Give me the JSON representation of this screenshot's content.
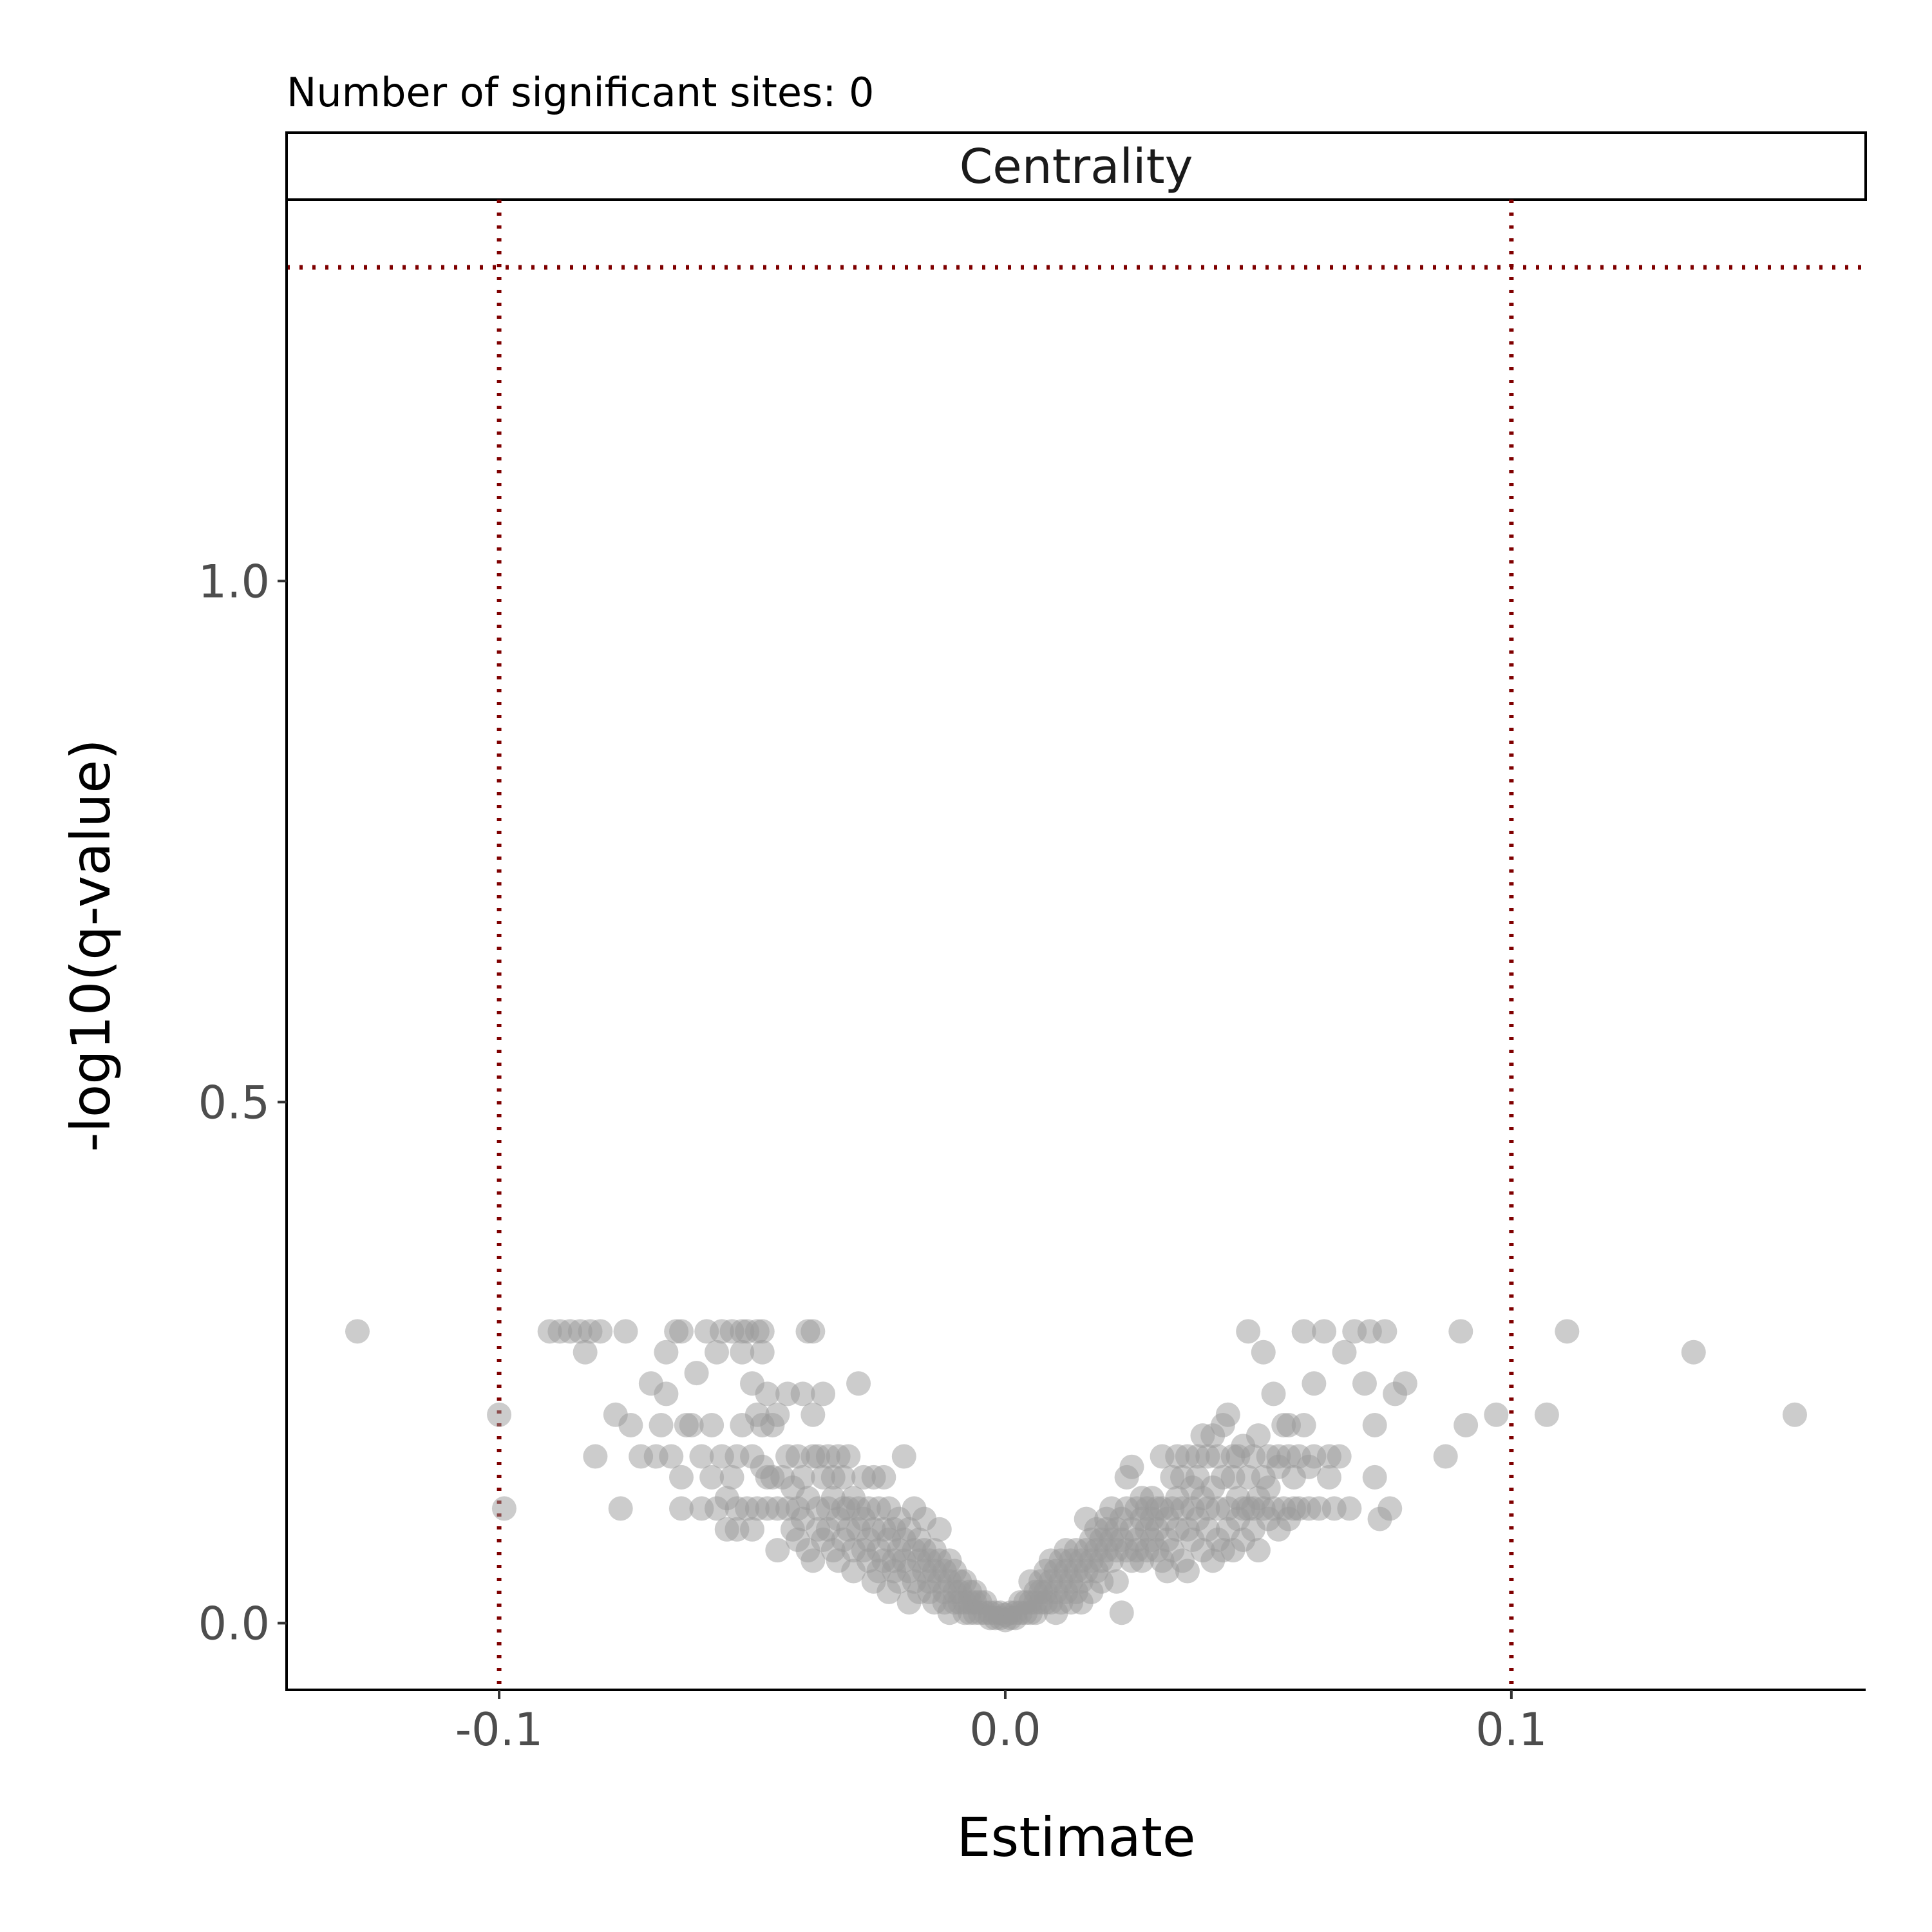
{
  "chart_data": {
    "type": "scatter",
    "subtitle": "Number of significant sites: 0",
    "facet_label": "Centrality",
    "xlabel": "Estimate",
    "ylabel": "-log10(q-value)",
    "xlim": [
      -0.142,
      0.17
    ],
    "ylim": [
      -0.064,
      1.366
    ],
    "x_ticks": [
      {
        "value": -0.1,
        "label": "-0.1"
      },
      {
        "value": 0.0,
        "label": "0.0"
      },
      {
        "value": 0.1,
        "label": "0.1"
      }
    ],
    "y_ticks": [
      {
        "value": 0.0,
        "label": "0.0"
      },
      {
        "value": 0.5,
        "label": "0.5"
      },
      {
        "value": 1.0,
        "label": "1.0"
      }
    ],
    "reference_lines": {
      "vertical_x": [
        -0.1,
        0.1
      ],
      "horizontal_y": [
        1.301
      ],
      "color": "#7f0000",
      "style": "dotted"
    },
    "point_color": "#999999",
    "point_opacity": 0.5,
    "grid": false,
    "legend": "none",
    "points": [
      [
        -0.128,
        0.28
      ],
      [
        -0.1,
        0.2
      ],
      [
        -0.099,
        0.11
      ],
      [
        -0.09,
        0.28
      ],
      [
        -0.088,
        0.28
      ],
      [
        -0.086,
        0.28
      ],
      [
        -0.084,
        0.28
      ],
      [
        -0.082,
        0.28
      ],
      [
        -0.08,
        0.28
      ],
      [
        -0.083,
        0.26
      ],
      [
        -0.081,
        0.16
      ],
      [
        -0.077,
        0.2
      ],
      [
        -0.076,
        0.11
      ],
      [
        -0.075,
        0.28
      ],
      [
        -0.074,
        0.19
      ],
      [
        -0.072,
        0.16
      ],
      [
        -0.07,
        0.23
      ],
      [
        -0.069,
        0.16
      ],
      [
        -0.068,
        0.19
      ],
      [
        -0.067,
        0.22
      ],
      [
        -0.067,
        0.26
      ],
      [
        -0.066,
        0.16
      ],
      [
        -0.065,
        0.28
      ],
      [
        -0.064,
        0.28
      ],
      [
        -0.064,
        0.14
      ],
      [
        -0.064,
        0.11
      ],
      [
        -0.063,
        0.19
      ],
      [
        -0.062,
        0.19
      ],
      [
        -0.061,
        0.24
      ],
      [
        -0.06,
        0.11
      ],
      [
        -0.06,
        0.16
      ],
      [
        -0.059,
        0.28
      ],
      [
        -0.058,
        0.19
      ],
      [
        -0.058,
        0.14
      ],
      [
        -0.057,
        0.11
      ],
      [
        -0.057,
        0.26
      ],
      [
        -0.056,
        0.28
      ],
      [
        -0.056,
        0.16
      ],
      [
        -0.055,
        0.12
      ],
      [
        -0.055,
        0.09
      ],
      [
        -0.054,
        0.28
      ],
      [
        -0.054,
        0.14
      ],
      [
        -0.053,
        0.16
      ],
      [
        -0.053,
        0.11
      ],
      [
        -0.053,
        0.09
      ],
      [
        -0.052,
        0.28
      ],
      [
        -0.052,
        0.26
      ],
      [
        -0.052,
        0.19
      ],
      [
        -0.051,
        0.11
      ],
      [
        -0.051,
        0.28
      ],
      [
        -0.05,
        0.23
      ],
      [
        -0.05,
        0.16
      ],
      [
        -0.05,
        0.09
      ],
      [
        -0.049,
        0.28
      ],
      [
        -0.049,
        0.11
      ],
      [
        -0.049,
        0.2
      ],
      [
        -0.048,
        0.19
      ],
      [
        -0.048,
        0.15
      ],
      [
        -0.048,
        0.26
      ],
      [
        -0.048,
        0.28
      ],
      [
        -0.047,
        0.14
      ],
      [
        -0.047,
        0.11
      ],
      [
        -0.047,
        0.22
      ],
      [
        -0.046,
        0.19
      ],
      [
        -0.046,
        0.14
      ],
      [
        -0.045,
        0.11
      ],
      [
        -0.045,
        0.07
      ],
      [
        -0.045,
        0.2
      ],
      [
        -0.044,
        0.14
      ],
      [
        -0.043,
        0.11
      ],
      [
        -0.043,
        0.16
      ],
      [
        -0.043,
        0.22
      ],
      [
        -0.042,
        0.09
      ],
      [
        -0.042,
        0.13
      ],
      [
        -0.041,
        0.11
      ],
      [
        -0.041,
        0.08
      ],
      [
        -0.041,
        0.16
      ],
      [
        -0.04,
        0.22
      ],
      [
        -0.04,
        0.1
      ],
      [
        -0.04,
        0.14
      ],
      [
        -0.039,
        0.12
      ],
      [
        -0.039,
        0.28
      ],
      [
        -0.039,
        0.07
      ],
      [
        -0.038,
        0.2
      ],
      [
        -0.038,
        0.28
      ],
      [
        -0.038,
        0.16
      ],
      [
        -0.038,
        0.06
      ],
      [
        -0.037,
        0.11
      ],
      [
        -0.037,
        0.09
      ],
      [
        -0.037,
        0.16
      ],
      [
        -0.036,
        0.22
      ],
      [
        -0.036,
        0.14
      ],
      [
        -0.036,
        0.08
      ],
      [
        -0.035,
        0.11
      ],
      [
        -0.035,
        0.16
      ],
      [
        -0.035,
        0.09
      ],
      [
        -0.034,
        0.07
      ],
      [
        -0.034,
        0.12
      ],
      [
        -0.034,
        0.14
      ],
      [
        -0.033,
        0.16
      ],
      [
        -0.033,
        0.1
      ],
      [
        -0.033,
        0.06
      ],
      [
        -0.032,
        0.11
      ],
      [
        -0.032,
        0.08
      ],
      [
        -0.032,
        0.14
      ],
      [
        -0.031,
        0.09
      ],
      [
        -0.031,
        0.11
      ],
      [
        -0.031,
        0.16
      ],
      [
        -0.03,
        0.07
      ],
      [
        -0.03,
        0.12
      ],
      [
        -0.03,
        0.05
      ],
      [
        -0.029,
        0.09
      ],
      [
        -0.029,
        0.11
      ],
      [
        -0.029,
        0.23
      ],
      [
        -0.028,
        0.07
      ],
      [
        -0.028,
        0.14
      ],
      [
        -0.028,
        0.1
      ],
      [
        -0.027,
        0.06
      ],
      [
        -0.027,
        0.11
      ],
      [
        -0.027,
        0.08
      ],
      [
        -0.026,
        0.14
      ],
      [
        -0.026,
        0.09
      ],
      [
        -0.026,
        0.04
      ],
      [
        -0.025,
        0.07
      ],
      [
        -0.025,
        0.11
      ],
      [
        -0.025,
        0.05
      ],
      [
        -0.024,
        0.09
      ],
      [
        -0.024,
        0.06
      ],
      [
        -0.024,
        0.14
      ],
      [
        -0.023,
        0.08
      ],
      [
        -0.023,
        0.11
      ],
      [
        -0.023,
        0.03
      ],
      [
        -0.022,
        0.06
      ],
      [
        -0.022,
        0.09
      ],
      [
        -0.022,
        0.05
      ],
      [
        -0.021,
        0.07
      ],
      [
        -0.021,
        0.1
      ],
      [
        -0.021,
        0.04
      ],
      [
        -0.02,
        0.16
      ],
      [
        -0.02,
        0.06
      ],
      [
        -0.02,
        0.08
      ],
      [
        -0.019,
        0.05
      ],
      [
        -0.019,
        0.09
      ],
      [
        -0.019,
        0.02
      ],
      [
        -0.018,
        0.07
      ],
      [
        -0.018,
        0.04
      ],
      [
        -0.018,
        0.11
      ],
      [
        -0.017,
        0.06
      ],
      [
        -0.017,
        0.03
      ],
      [
        -0.017,
        0.08
      ],
      [
        -0.016,
        0.05
      ],
      [
        -0.016,
        0.07
      ],
      [
        -0.016,
        0.1
      ],
      [
        -0.015,
        0.04
      ],
      [
        -0.015,
        0.06
      ],
      [
        -0.015,
        0.03
      ],
      [
        -0.014,
        0.05
      ],
      [
        -0.014,
        0.02
      ],
      [
        -0.014,
        0.07
      ],
      [
        -0.013,
        0.04
      ],
      [
        -0.013,
        0.06
      ],
      [
        -0.013,
        0.09
      ],
      [
        -0.012,
        0.03
      ],
      [
        -0.012,
        0.05
      ],
      [
        -0.012,
        0.02
      ],
      [
        -0.011,
        0.04
      ],
      [
        -0.011,
        0.06
      ],
      [
        -0.011,
        0.01
      ],
      [
        -0.01,
        0.03
      ],
      [
        -0.01,
        0.05
      ],
      [
        -0.01,
        0.02
      ],
      [
        -0.009,
        0.04
      ],
      [
        -0.009,
        0.02
      ],
      [
        -0.009,
        0.03
      ],
      [
        -0.008,
        0.02
      ],
      [
        -0.008,
        0.04
      ],
      [
        -0.008,
        0.01
      ],
      [
        -0.007,
        0.03
      ],
      [
        -0.007,
        0.02
      ],
      [
        -0.007,
        0.01
      ],
      [
        -0.006,
        0.02
      ],
      [
        -0.006,
        0.01
      ],
      [
        -0.006,
        0.03
      ],
      [
        -0.005,
        0.01
      ],
      [
        -0.005,
        0.02
      ],
      [
        -0.004,
        0.01
      ],
      [
        -0.004,
        0.02
      ],
      [
        -0.003,
        0.01
      ],
      [
        -0.003,
        0.005
      ],
      [
        -0.002,
        0.01
      ],
      [
        -0.002,
        0.005
      ],
      [
        -0.001,
        0.005
      ],
      [
        -0.001,
        0.01
      ],
      [
        0.0,
        0.003
      ],
      [
        0.0,
        0.008
      ],
      [
        0.001,
        0.005
      ],
      [
        0.001,
        0.01
      ],
      [
        0.002,
        0.005
      ],
      [
        0.002,
        0.01
      ],
      [
        0.003,
        0.01
      ],
      [
        0.003,
        0.02
      ],
      [
        0.004,
        0.01
      ],
      [
        0.004,
        0.02
      ],
      [
        0.005,
        0.02
      ],
      [
        0.005,
        0.01
      ],
      [
        0.005,
        0.04
      ],
      [
        0.006,
        0.02
      ],
      [
        0.006,
        0.03
      ],
      [
        0.006,
        0.01
      ],
      [
        0.007,
        0.03
      ],
      [
        0.007,
        0.02
      ],
      [
        0.007,
        0.04
      ],
      [
        0.008,
        0.03
      ],
      [
        0.008,
        0.05
      ],
      [
        0.008,
        0.02
      ],
      [
        0.009,
        0.04
      ],
      [
        0.009,
        0.02
      ],
      [
        0.009,
        0.06
      ],
      [
        0.01,
        0.03
      ],
      [
        0.01,
        0.05
      ],
      [
        0.01,
        0.01
      ],
      [
        0.011,
        0.04
      ],
      [
        0.011,
        0.06
      ],
      [
        0.011,
        0.02
      ],
      [
        0.012,
        0.05
      ],
      [
        0.012,
        0.03
      ],
      [
        0.012,
        0.07
      ],
      [
        0.013,
        0.04
      ],
      [
        0.013,
        0.06
      ],
      [
        0.013,
        0.02
      ],
      [
        0.014,
        0.05
      ],
      [
        0.014,
        0.07
      ],
      [
        0.014,
        0.03
      ],
      [
        0.015,
        0.06
      ],
      [
        0.015,
        0.04
      ],
      [
        0.015,
        0.02
      ],
      [
        0.016,
        0.07
      ],
      [
        0.016,
        0.05
      ],
      [
        0.016,
        0.1
      ],
      [
        0.017,
        0.06
      ],
      [
        0.017,
        0.08
      ],
      [
        0.017,
        0.03
      ],
      [
        0.018,
        0.07
      ],
      [
        0.018,
        0.05
      ],
      [
        0.018,
        0.09
      ],
      [
        0.019,
        0.06
      ],
      [
        0.019,
        0.08
      ],
      [
        0.019,
        0.04
      ],
      [
        0.02,
        0.07
      ],
      [
        0.02,
        0.09
      ],
      [
        0.02,
        0.1
      ],
      [
        0.021,
        0.06
      ],
      [
        0.021,
        0.08
      ],
      [
        0.021,
        0.11
      ],
      [
        0.022,
        0.07
      ],
      [
        0.022,
        0.09
      ],
      [
        0.022,
        0.04
      ],
      [
        0.023,
        0.01
      ],
      [
        0.023,
        0.08
      ],
      [
        0.023,
        0.1
      ],
      [
        0.024,
        0.07
      ],
      [
        0.024,
        0.11
      ],
      [
        0.024,
        0.14
      ],
      [
        0.025,
        0.09
      ],
      [
        0.025,
        0.06
      ],
      [
        0.025,
        0.15
      ],
      [
        0.026,
        0.08
      ],
      [
        0.026,
        0.11
      ],
      [
        0.026,
        0.07
      ],
      [
        0.027,
        0.1
      ],
      [
        0.027,
        0.12
      ],
      [
        0.027,
        0.06
      ],
      [
        0.028,
        0.09
      ],
      [
        0.028,
        0.11
      ],
      [
        0.028,
        0.07
      ],
      [
        0.029,
        0.08
      ],
      [
        0.029,
        0.1
      ],
      [
        0.029,
        0.12
      ],
      [
        0.03,
        0.07
      ],
      [
        0.03,
        0.11
      ],
      [
        0.03,
        0.09
      ],
      [
        0.031,
        0.06
      ],
      [
        0.031,
        0.11
      ],
      [
        0.031,
        0.16
      ],
      [
        0.032,
        0.08
      ],
      [
        0.032,
        0.1
      ],
      [
        0.032,
        0.05
      ],
      [
        0.033,
        0.11
      ],
      [
        0.033,
        0.14
      ],
      [
        0.033,
        0.07
      ],
      [
        0.034,
        0.09
      ],
      [
        0.034,
        0.12
      ],
      [
        0.034,
        0.16
      ],
      [
        0.035,
        0.06
      ],
      [
        0.035,
        0.11
      ],
      [
        0.035,
        0.14
      ],
      [
        0.036,
        0.09
      ],
      [
        0.036,
        0.16
      ],
      [
        0.036,
        0.05
      ],
      [
        0.037,
        0.11
      ],
      [
        0.037,
        0.13
      ],
      [
        0.037,
        0.08
      ],
      [
        0.038,
        0.1
      ],
      [
        0.038,
        0.16
      ],
      [
        0.038,
        0.14
      ],
      [
        0.039,
        0.07
      ],
      [
        0.039,
        0.12
      ],
      [
        0.039,
        0.18
      ],
      [
        0.04,
        0.09
      ],
      [
        0.04,
        0.11
      ],
      [
        0.04,
        0.16
      ],
      [
        0.041,
        0.06
      ],
      [
        0.041,
        0.13
      ],
      [
        0.041,
        0.18
      ],
      [
        0.042,
        0.08
      ],
      [
        0.042,
        0.11
      ],
      [
        0.042,
        0.16
      ],
      [
        0.043,
        0.07
      ],
      [
        0.043,
        0.14
      ],
      [
        0.043,
        0.19
      ],
      [
        0.044,
        0.09
      ],
      [
        0.044,
        0.11
      ],
      [
        0.044,
        0.2
      ],
      [
        0.045,
        0.07
      ],
      [
        0.045,
        0.14
      ],
      [
        0.045,
        0.16
      ],
      [
        0.046,
        0.1
      ],
      [
        0.046,
        0.12
      ],
      [
        0.046,
        0.16
      ],
      [
        0.047,
        0.11
      ],
      [
        0.047,
        0.17
      ],
      [
        0.047,
        0.08
      ],
      [
        0.048,
        0.11
      ],
      [
        0.048,
        0.14
      ],
      [
        0.048,
        0.28
      ],
      [
        0.049,
        0.09
      ],
      [
        0.049,
        0.16
      ],
      [
        0.049,
        0.11
      ],
      [
        0.05,
        0.12
      ],
      [
        0.05,
        0.18
      ],
      [
        0.05,
        0.07
      ],
      [
        0.051,
        0.11
      ],
      [
        0.051,
        0.14
      ],
      [
        0.051,
        0.26
      ],
      [
        0.052,
        0.1
      ],
      [
        0.052,
        0.16
      ],
      [
        0.052,
        0.13
      ],
      [
        0.053,
        0.11
      ],
      [
        0.053,
        0.22
      ],
      [
        0.054,
        0.09
      ],
      [
        0.054,
        0.15
      ],
      [
        0.054,
        0.16
      ],
      [
        0.055,
        0.11
      ],
      [
        0.055,
        0.19
      ],
      [
        0.056,
        0.1
      ],
      [
        0.056,
        0.16
      ],
      [
        0.056,
        0.19
      ],
      [
        0.057,
        0.11
      ],
      [
        0.057,
        0.14
      ],
      [
        0.058,
        0.16
      ],
      [
        0.058,
        0.11
      ],
      [
        0.059,
        0.19
      ],
      [
        0.059,
        0.28
      ],
      [
        0.06,
        0.11
      ],
      [
        0.06,
        0.15
      ],
      [
        0.061,
        0.23
      ],
      [
        0.061,
        0.16
      ],
      [
        0.062,
        0.11
      ],
      [
        0.063,
        0.28
      ],
      [
        0.064,
        0.16
      ],
      [
        0.064,
        0.14
      ],
      [
        0.065,
        0.11
      ],
      [
        0.066,
        0.16
      ],
      [
        0.067,
        0.26
      ],
      [
        0.068,
        0.11
      ],
      [
        0.069,
        0.28
      ],
      [
        0.071,
        0.23
      ],
      [
        0.072,
        0.28
      ],
      [
        0.073,
        0.14
      ],
      [
        0.073,
        0.19
      ],
      [
        0.074,
        0.1
      ],
      [
        0.075,
        0.28
      ],
      [
        0.076,
        0.11
      ],
      [
        0.077,
        0.22
      ],
      [
        0.079,
        0.23
      ],
      [
        0.087,
        0.16
      ],
      [
        0.09,
        0.28
      ],
      [
        0.091,
        0.19
      ],
      [
        0.097,
        0.2
      ],
      [
        0.107,
        0.2
      ],
      [
        0.111,
        0.28
      ],
      [
        0.136,
        0.26
      ],
      [
        0.156,
        0.2
      ]
    ]
  }
}
